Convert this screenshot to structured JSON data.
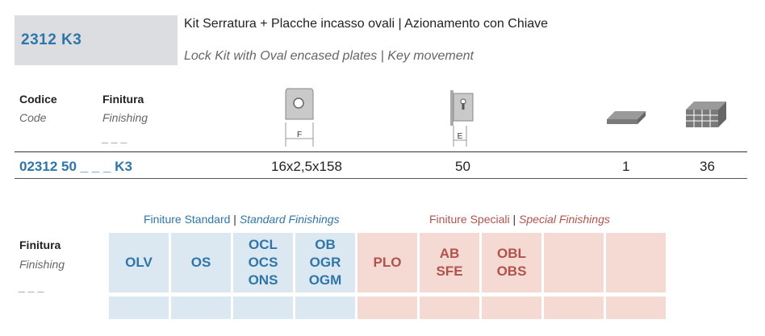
{
  "header": {
    "code": "2312 K3",
    "title_it": "Kit Serratura + Placche incasso ovali | Azionamento con Chiave",
    "title_en": "Lock Kit with Oval encased plates | Key movement"
  },
  "columns": {
    "codice": "Codice",
    "code": "Code",
    "finitura": "Finitura",
    "finishing": "Finishing",
    "blank": "_ _ _",
    "f_label": "F",
    "e_label": "E"
  },
  "row": {
    "code": "02312 50 _ _ _ K3",
    "dim": "16x2,5x158",
    "e": "50",
    "pack": "1",
    "box": "36"
  },
  "finishes": {
    "std_label_it": "Finiture Standard",
    "std_label_en": "Standard Finishings",
    "spec_label_it": "Finiture Speciali",
    "spec_label_en": "Special Finishings",
    "sep": "|",
    "side_it": "Finitura",
    "side_en": "Finishing",
    "side_blank": "_ _ _",
    "standard": [
      [
        "OLV"
      ],
      [
        "OS"
      ],
      [
        "OCL",
        "OCS",
        "ONS"
      ],
      [
        "OB",
        "OGR",
        "OGM"
      ]
    ],
    "special": [
      [
        "PLO"
      ],
      [
        "AB",
        "SFE"
      ],
      [
        "OBL",
        "OBS"
      ],
      [],
      []
    ]
  },
  "colors": {
    "blue": "#2f76a8",
    "red": "#b1534d",
    "blue_bg": "#dbe7f1",
    "red_bg": "#f5d9d3"
  }
}
